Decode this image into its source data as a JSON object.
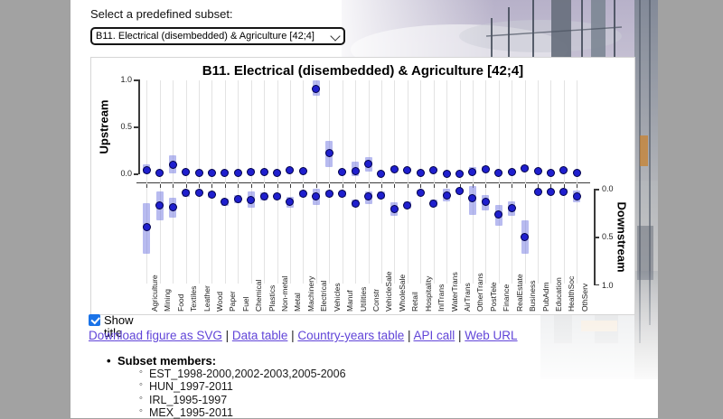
{
  "page": {
    "subset_selector": {
      "label": "Select a predefined subset:",
      "value": "B11. Electrical (disembedded) & Agriculture [42;4]",
      "dropdown_icon": "chevron-down-icon"
    },
    "controls": {
      "show_title_label": "Show title",
      "show_title_checked": true
    },
    "links": {
      "separator": " | ",
      "items": [
        "Download figure as SVG",
        "Data table",
        "Country-years table",
        "API call",
        "Web URL"
      ]
    },
    "subset_members": {
      "header": "Subset members:",
      "items": [
        "EST_1998-2000,2002-2003,2005-2006",
        "HUN_1997-2011",
        "IRL_1995-1997",
        "MEX_1995-2011"
      ]
    }
  },
  "chart_data": {
    "type": "scatter",
    "title": "B11. Electrical (disembedded) & Agriculture [42;4]",
    "grid": true,
    "legend": false,
    "panels": [
      {
        "name": "Upstream",
        "axis_ticks": [
          "1.0",
          "0.5",
          "0.0"
        ],
        "range": [
          0,
          1
        ],
        "position": "left"
      },
      {
        "name": "Downstream",
        "axis_ticks": [
          "0.0",
          "0.5",
          "1.0"
        ],
        "range": [
          0,
          1
        ],
        "position": "right",
        "reversed": true
      }
    ],
    "categories": [
      "Agriculture",
      "Mining",
      "Food",
      "Textiles",
      "Leather",
      "Wood",
      "Paper",
      "Fuel",
      "Chemical",
      "Plastics",
      "Non-metal",
      "Metal",
      "Machinery",
      "Electrical",
      "Vehicles",
      "Manuf",
      "Utilities",
      "Constr",
      "VehicleSale",
      "WholeSale",
      "Retail",
      "Hospitality",
      "InlTrans",
      "WaterTrans",
      "AirTrans",
      "OtherTrans",
      "PostTele",
      "Finance",
      "RealEstate",
      "Business",
      "PubAdm",
      "Education",
      "HealthSoc",
      "OthServ"
    ],
    "series": [
      {
        "name": "Upstream",
        "values": [
          0.04,
          0.01,
          0.09,
          0.02,
          0.01,
          0.01,
          0.01,
          0.01,
          0.02,
          0.02,
          0.01,
          0.04,
          0.03,
          0.9,
          0.22,
          0.02,
          0.03,
          0.1,
          0.0,
          0.05,
          0.04,
          0.01,
          0.04,
          0.0,
          0.0,
          0.02,
          0.05,
          0.01,
          0.02,
          0.06,
          0.03,
          0.01,
          0.04,
          0.01
        ],
        "band_low": [
          0.0,
          -0.01,
          0.0,
          0.0,
          -0.01,
          -0.01,
          0.0,
          -0.01,
          0.0,
          0.0,
          0.0,
          0.02,
          0.01,
          0.83,
          0.07,
          0.0,
          -0.03,
          0.02,
          -0.02,
          0.03,
          0.02,
          -0.01,
          0.02,
          -0.02,
          -0.02,
          -0.01,
          0.02,
          -0.01,
          0.0,
          0.03,
          0.01,
          -0.01,
          0.02,
          -0.01
        ],
        "band_high": [
          0.1,
          0.03,
          0.2,
          0.04,
          0.03,
          0.03,
          0.03,
          0.03,
          0.05,
          0.04,
          0.03,
          0.06,
          0.05,
          0.99,
          0.35,
          0.04,
          0.13,
          0.18,
          0.02,
          0.08,
          0.06,
          0.03,
          0.06,
          0.02,
          0.02,
          0.07,
          0.08,
          0.03,
          0.04,
          0.09,
          0.05,
          0.03,
          0.06,
          0.03
        ]
      },
      {
        "name": "Downstream",
        "values": [
          0.4,
          0.17,
          0.19,
          0.04,
          0.04,
          0.06,
          0.14,
          0.11,
          0.12,
          0.08,
          0.08,
          0.14,
          0.05,
          0.08,
          0.05,
          0.05,
          0.15,
          0.08,
          0.07,
          0.21,
          0.17,
          0.04,
          0.15,
          0.07,
          0.02,
          0.1,
          0.14,
          0.27,
          0.2,
          0.5,
          0.03,
          0.03,
          0.03,
          0.08
        ],
        "band_low": [
          0.15,
          0.03,
          0.09,
          0.01,
          0.01,
          0.03,
          0.1,
          0.07,
          0.03,
          0.04,
          0.05,
          0.08,
          0.02,
          0.0,
          0.02,
          0.02,
          0.11,
          0.03,
          0.03,
          0.14,
          0.13,
          0.01,
          0.11,
          0.0,
          0.0,
          -0.03,
          0.07,
          0.17,
          0.13,
          0.33,
          0.01,
          0.01,
          0.0,
          0.02
        ],
        "band_high": [
          0.67,
          0.33,
          0.3,
          0.08,
          0.07,
          0.09,
          0.18,
          0.15,
          0.2,
          0.12,
          0.11,
          0.2,
          0.08,
          0.17,
          0.08,
          0.08,
          0.19,
          0.16,
          0.1,
          0.28,
          0.21,
          0.06,
          0.19,
          0.13,
          0.05,
          0.27,
          0.22,
          0.38,
          0.28,
          0.67,
          0.06,
          0.06,
          0.05,
          0.14
        ]
      }
    ],
    "colors": {
      "dot": "#1f1fce",
      "dot_border": "#00004a",
      "band": "rgba(126,131,228,0.55)",
      "gridline": "#e3e3e3",
      "axis": "#3a3a3a",
      "link": "#6145d8",
      "checkbox": "#1a73e8"
    }
  }
}
